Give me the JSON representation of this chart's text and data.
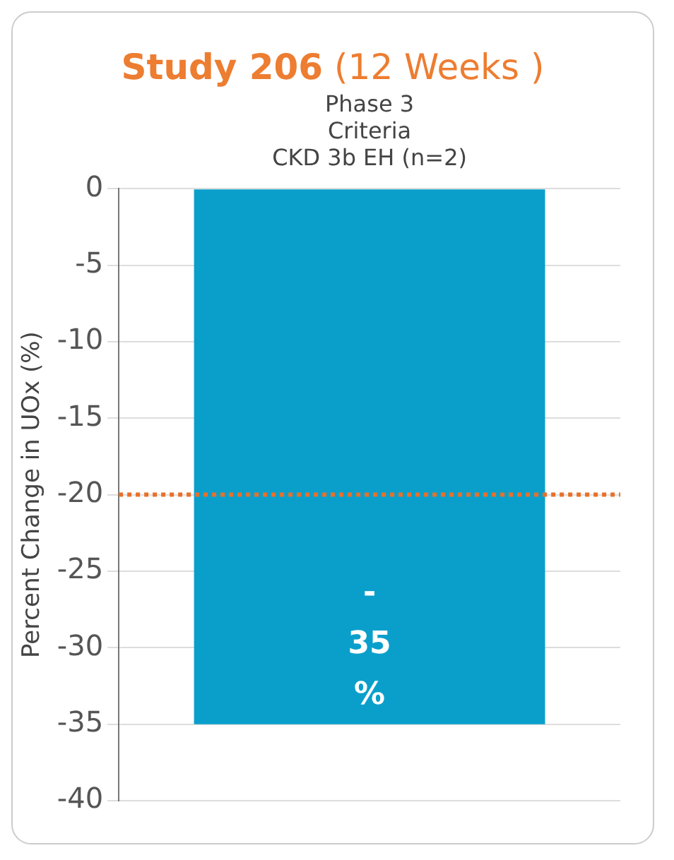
{
  "chart_data": {
    "type": "bar",
    "title": "Study 206",
    "subtitle": "(12 Weeks )",
    "ylabel": "Percent Change in UOx (%)",
    "categories": [
      "Phase 3\nCriteria\nCKD 3b EH (n=2)"
    ],
    "values": [
      -35
    ],
    "color": "#0a9fcb",
    "value_labels": [
      "- 35 %"
    ],
    "ylim": [
      -40,
      0
    ],
    "yticks": [
      -40,
      -35,
      -30,
      -25,
      -20,
      -15,
      -10,
      -5,
      0
    ],
    "grid": "y",
    "legend": false,
    "ref_lines": [
      {
        "axis": "y",
        "value": -20,
        "color": "#e8702a",
        "line_style": "dotted"
      }
    ]
  }
}
